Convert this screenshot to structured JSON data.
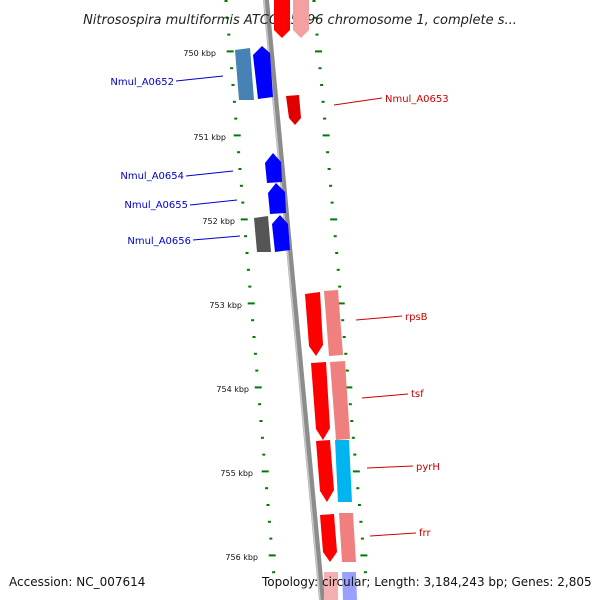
{
  "title": "Nitrosospira multiformis ATCC 25196 chromosome 1, complete s...",
  "accession": "Accession: NC_007614",
  "topology": "Topology: circular; Length: 3,184,243 bp; Genes: 2,805",
  "colors": {
    "forward_gene": "#0000ff",
    "forward_gene_alt": "#4682b4",
    "forward_gene_dark": "#555555",
    "reverse_gene": "#ff0000",
    "reverse_gene_light": "#f08080",
    "pyrH_partner": "#00b4f0",
    "ticks": "#007a00",
    "backbone": "#888888"
  },
  "ticks": [
    {
      "label": "750 kbp"
    },
    {
      "label": "751 kbp"
    },
    {
      "label": "752 kbp"
    },
    {
      "label": "753 kbp"
    },
    {
      "label": "754 kbp"
    },
    {
      "label": "755 kbp"
    },
    {
      "label": "756 kbp"
    }
  ],
  "left_genes": [
    {
      "name": "Nmul_A0652"
    },
    {
      "name": "Nmul_A0654"
    },
    {
      "name": "Nmul_A0655"
    },
    {
      "name": "Nmul_A0656"
    }
  ],
  "right_genes": [
    {
      "name": "Nmul_A0653"
    },
    {
      "name": "rpsB"
    },
    {
      "name": "tsf"
    },
    {
      "name": "pyrH"
    },
    {
      "name": "frr"
    }
  ]
}
